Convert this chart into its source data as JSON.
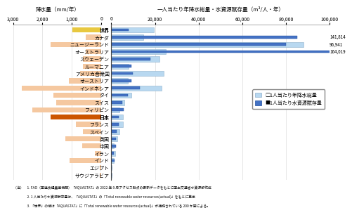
{
  "countries": [
    "世界",
    "カナダ",
    "ニュージーランド",
    "オーストラリア",
    "スウェーデン",
    "ルーマニア",
    "アメリカ合衆国",
    "オーストリア",
    "インドネシア",
    "タイ",
    "スイス",
    "フィリピン",
    "日本",
    "フランス",
    "スペイン",
    "英国",
    "中国",
    "イラン",
    "インド",
    "エジプト",
    "サウジアラビア"
  ],
  "precipitation_mm": [
    990,
    537,
    1732,
    534,
    624,
    637,
    715,
    1105,
    2702,
    1622,
    1537,
    2348,
    1718,
    867,
    636,
    1220,
    645,
    228,
    1083,
    51,
    59
  ],
  "per_capita_precip": [
    19635,
    14670,
    88000,
    25000,
    22000,
    7800,
    24000,
    7500,
    23000,
    9300,
    6000,
    3600,
    5400,
    5300,
    3600,
    2900,
    1200,
    1800,
    1000,
    120,
    60
  ],
  "per_capita_water": [
    8010,
    85200,
    80000,
    164019,
    18000,
    9300,
    9800,
    9300,
    13000,
    7500,
    5000,
    5800,
    3380,
    3370,
    2400,
    2230,
    2050,
    1280,
    1440,
    23,
    95
  ],
  "canada_label": "141,814",
  "nz_label": "96,941",
  "aus_label": "164,019",
  "left_special": {
    "世界": "#e8c840",
    "日本": "#cc5500"
  },
  "left_default_color": "#f5c8a0",
  "bar_precip_color": "#b8d8f0",
  "bar_water_color": "#4472c4",
  "title_left": "降水量（mm/年）",
  "title_right": "一人当たり年降水総量・水資源賦存量（m³/人・年）",
  "legend1": "□1人当たり年降水総量",
  "legend2": "■1人当たり水資源賦存量",
  "note1": "（注）　1. FAO（国連食糧農業機関）「AQUASTAT」の 2022 年 9 月アクセス時点の最新データをもとに国土交通省水資源部作成",
  "note2": "　　　　2. 1 人当たり水資源賦存量は、「AQUASTAT」の「Total renewable water resources(actual)」をもとに算出",
  "note3": "　　　　3. 「世界」の値は「AQUASTAT」に「Total renewable water resources(actual)」が捕捉されている 200 か国による。",
  "xlim_left": 3000,
  "xlim_right": 100000,
  "xticks_left": [
    3000,
    2000,
    1000,
    0
  ],
  "xtick_labels_left": [
    "3,000",
    "2,000",
    "1,000",
    "0"
  ],
  "xticks_right": [
    0,
    20000,
    40000,
    60000,
    80000,
    100000
  ],
  "xtick_labels_right": [
    "0",
    "20,000",
    "40,000",
    "60,000",
    "80,000",
    "100,000"
  ]
}
